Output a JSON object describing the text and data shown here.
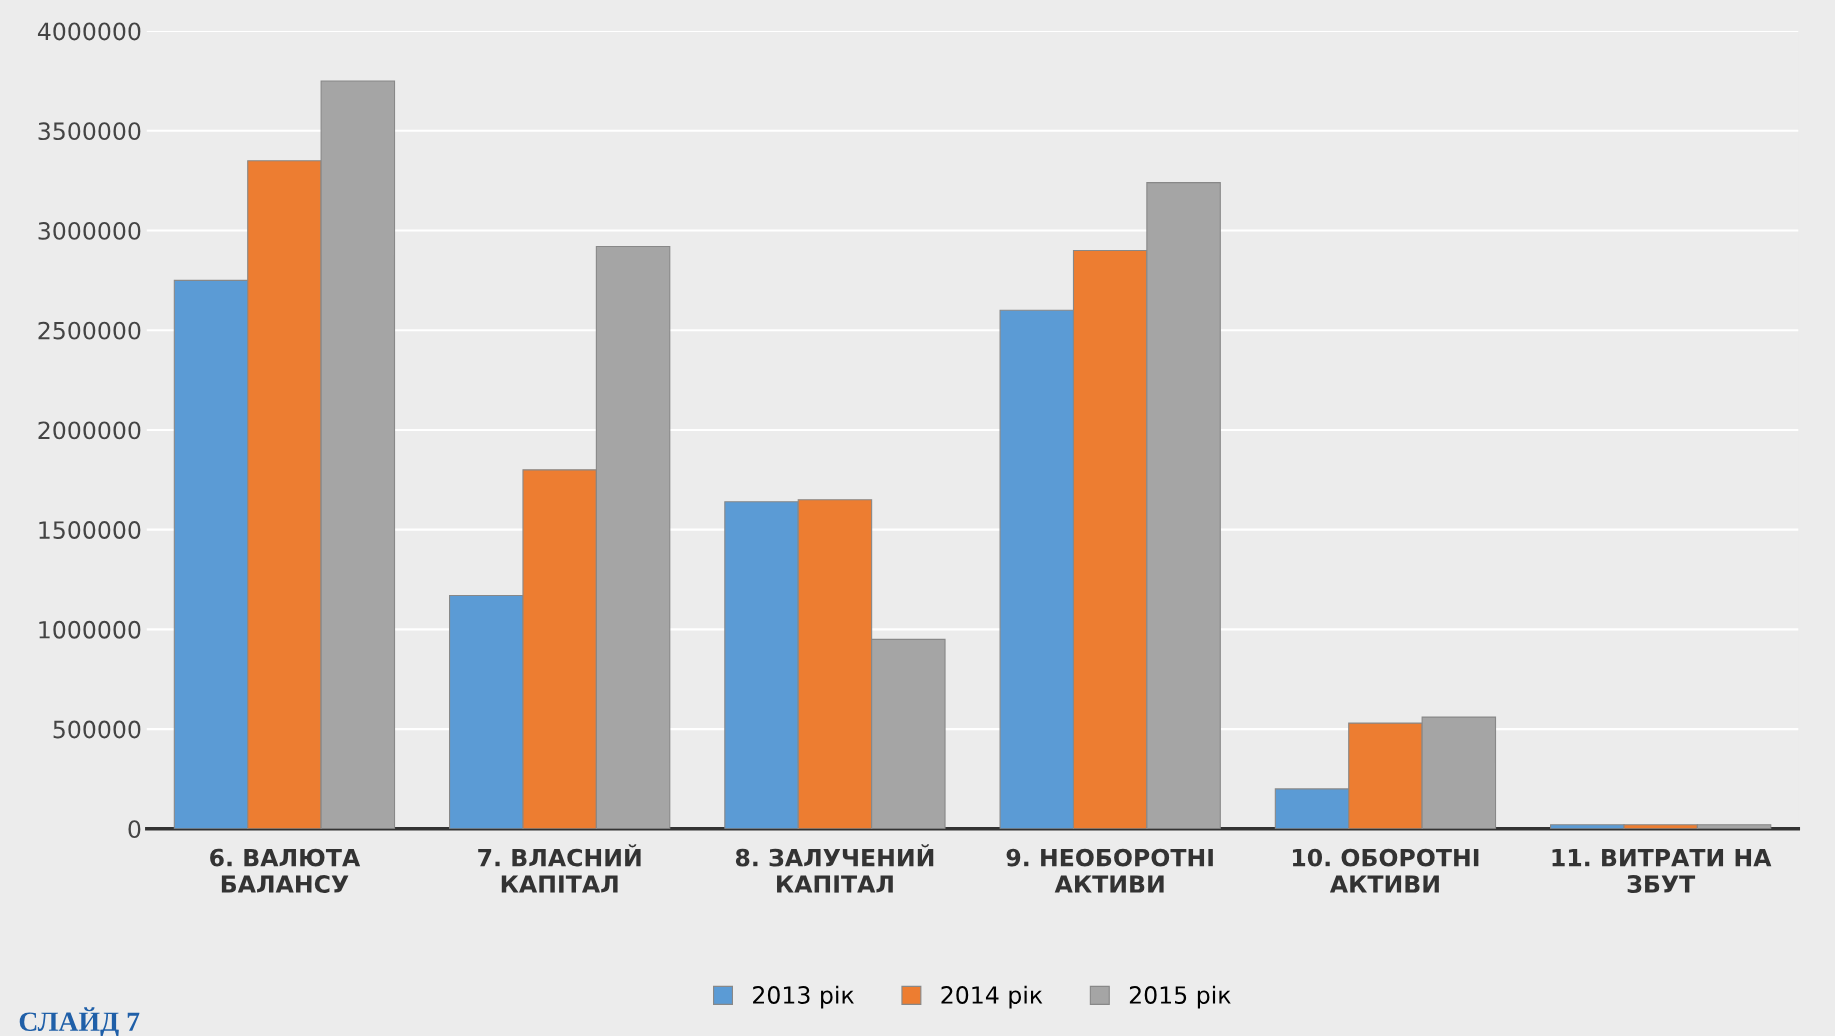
{
  "chart_data": {
    "type": "bar",
    "categories": [
      "6. ВАЛЮТА\nБАЛАНСУ",
      "7. ВЛАСНИЙ\nКАПІТАЛ",
      "8. ЗАЛУЧЕНИЙ\nКАПІТАЛ",
      "9. НЕОБОРОТНІ\nАКТИВИ",
      "10. ОБОРОТНІ\nАКТИВИ",
      "11. ВИТРАТИ НА\nЗБУТ"
    ],
    "series": [
      {
        "name": "2013 рік",
        "color": "#5b9bd5",
        "values": [
          2750000,
          1170000,
          1640000,
          2600000,
          200000,
          20000
        ]
      },
      {
        "name": "2014 рік",
        "color": "#ed7d31",
        "values": [
          3350000,
          1800000,
          1650000,
          2900000,
          530000,
          20000
        ]
      },
      {
        "name": "2015 рік",
        "color": "#a5a5a5",
        "values": [
          3750000,
          2920000,
          950000,
          3240000,
          560000,
          20000
        ]
      }
    ],
    "ylim": [
      0,
      4000000
    ],
    "yticks": [
      0,
      500000,
      1000000,
      1500000,
      2000000,
      2500000,
      3000000,
      3500000,
      4000000
    ],
    "grid": "y",
    "legend": "bottom",
    "annotations": [
      "СЛАЙД 7"
    ]
  }
}
